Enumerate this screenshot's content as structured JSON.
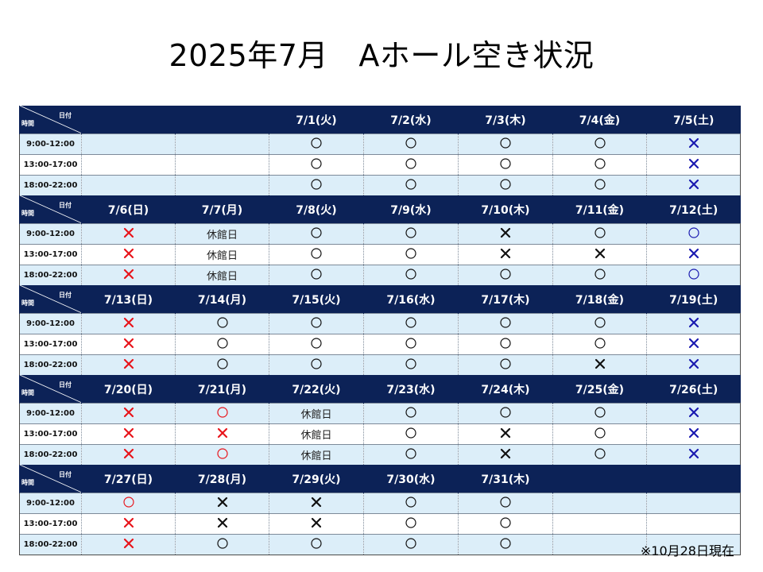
{
  "title": "2025年7月　Aホール空き状況",
  "corner": {
    "date_label": "日付",
    "time_label": "時間"
  },
  "timeslots": [
    "9:00-12:00",
    "13:00-17:00",
    "18:00-22:00"
  ],
  "closed_label": "休館日",
  "legend": {
    "o": "available (black circle)",
    "O": "available (red circle)",
    "b": "unavailable (blue cross)",
    "r": "unavailable (red cross)",
    "k": "unavailable (black cross)",
    "c": "休館日",
    "": "empty"
  },
  "colors": {
    "header_bg": "#0c2257",
    "row_blue": "#dceef9",
    "red": "#e8141b",
    "blue": "#1a1ab0",
    "black": "#111111"
  },
  "weeks": [
    {
      "dates": [
        "",
        "",
        "7/1(火)",
        "7/2(水)",
        "7/3(木)",
        "7/4(金)",
        "7/5(土)"
      ],
      "rows": [
        [
          "",
          "",
          "o",
          "o",
          "o",
          "o",
          "b"
        ],
        [
          "",
          "",
          "o",
          "o",
          "o",
          "o",
          "b"
        ],
        [
          "",
          "",
          "o",
          "o",
          "o",
          "o",
          "b"
        ]
      ]
    },
    {
      "dates": [
        "7/6(日)",
        "7/7(月)",
        "7/8(火)",
        "7/9(水)",
        "7/10(木)",
        "7/11(金)",
        "7/12(土)"
      ],
      "rows": [
        [
          "r",
          "c",
          "o",
          "o",
          "k",
          "o",
          "Ob"
        ],
        [
          "r",
          "c",
          "o",
          "o",
          "k",
          "k",
          "b"
        ],
        [
          "r",
          "c",
          "o",
          "o",
          "o",
          "o",
          "Ob"
        ]
      ]
    },
    {
      "dates": [
        "7/13(日)",
        "7/14(月)",
        "7/15(火)",
        "7/16(水)",
        "7/17(木)",
        "7/18(金)",
        "7/19(土)"
      ],
      "rows": [
        [
          "r",
          "o",
          "o",
          "o",
          "o",
          "o",
          "b"
        ],
        [
          "r",
          "o",
          "o",
          "o",
          "o",
          "o",
          "b"
        ],
        [
          "r",
          "o",
          "o",
          "o",
          "o",
          "k",
          "b"
        ]
      ]
    },
    {
      "dates": [
        "7/20(日)",
        "7/21(月)",
        "7/22(火)",
        "7/23(水)",
        "7/24(木)",
        "7/25(金)",
        "7/26(土)"
      ],
      "rows": [
        [
          "r",
          "O",
          "c",
          "o",
          "o",
          "o",
          "b"
        ],
        [
          "r",
          "r",
          "c",
          "o",
          "k",
          "o",
          "b"
        ],
        [
          "r",
          "O",
          "c",
          "o",
          "k",
          "o",
          "b"
        ]
      ]
    },
    {
      "dates": [
        "7/27(日)",
        "7/28(月)",
        "7/29(火)",
        "7/30(水)",
        "7/31(木)",
        "",
        ""
      ],
      "rows": [
        [
          "O",
          "k",
          "k",
          "o",
          "o",
          "",
          ""
        ],
        [
          "r",
          "k",
          "k",
          "o",
          "o",
          "",
          ""
        ],
        [
          "r",
          "o",
          "o",
          "o",
          "o",
          "",
          ""
        ]
      ]
    }
  ],
  "footnote": "※10月28日現在"
}
